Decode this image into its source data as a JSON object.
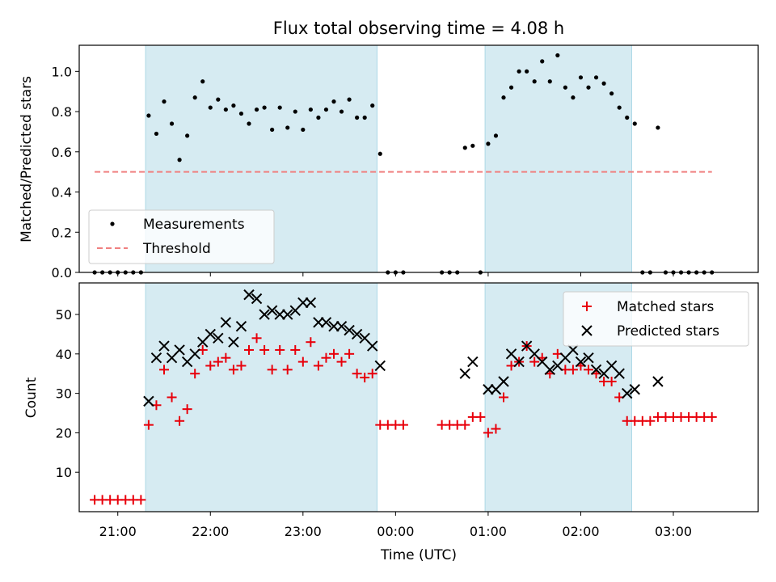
{
  "chart_data": [
    {
      "type": "scatter",
      "title": "Flux total observing time = 4.08 h",
      "xlabel": "",
      "ylabel": "Matched/Predicted stars",
      "xlim": [
        "20:35",
        "03:55"
      ],
      "ylim": [
        0,
        1.13
      ],
      "yticks": [
        "0.0",
        "0.2",
        "0.4",
        "0.6",
        "0.8",
        "1.0"
      ],
      "shaded_intervals": [
        [
          "21:18",
          "23:48"
        ],
        [
          "00:58",
          "02:33"
        ]
      ],
      "legend": {
        "position": "lower-left",
        "entries": [
          "Measurements",
          "Threshold"
        ]
      },
      "threshold": {
        "name": "Threshold",
        "y": 0.5,
        "x_range": [
          "20:45",
          "03:25"
        ],
        "color": "#f08080"
      },
      "series": [
        {
          "name": "Measurements",
          "color": "#000000",
          "points": [
            [
              "20:45",
              0
            ],
            [
              "20:50",
              0
            ],
            [
              "20:55",
              0
            ],
            [
              "21:00",
              0
            ],
            [
              "21:05",
              0
            ],
            [
              "21:10",
              0
            ],
            [
              "21:15",
              0
            ],
            [
              "21:20",
              0.78
            ],
            [
              "21:25",
              0.69
            ],
            [
              "21:30",
              0.85
            ],
            [
              "21:35",
              0.74
            ],
            [
              "21:40",
              0.56
            ],
            [
              "21:45",
              0.68
            ],
            [
              "21:50",
              0.87
            ],
            [
              "21:55",
              0.95
            ],
            [
              "22:00",
              0.82
            ],
            [
              "22:05",
              0.86
            ],
            [
              "22:10",
              0.81
            ],
            [
              "22:15",
              0.83
            ],
            [
              "22:20",
              0.79
            ],
            [
              "22:25",
              0.74
            ],
            [
              "22:30",
              0.81
            ],
            [
              "22:35",
              0.82
            ],
            [
              "22:40",
              0.71
            ],
            [
              "22:45",
              0.82
            ],
            [
              "22:50",
              0.72
            ],
            [
              "22:55",
              0.8
            ],
            [
              "23:00",
              0.71
            ],
            [
              "23:05",
              0.81
            ],
            [
              "23:10",
              0.77
            ],
            [
              "23:15",
              0.81
            ],
            [
              "23:20",
              0.85
            ],
            [
              "23:25",
              0.8
            ],
            [
              "23:30",
              0.86
            ],
            [
              "23:35",
              0.77
            ],
            [
              "23:40",
              0.77
            ],
            [
              "23:45",
              0.83
            ],
            [
              "23:50",
              0.59
            ],
            [
              "23:55",
              0
            ],
            [
              "00:00",
              0
            ],
            [
              "00:05",
              0
            ],
            [
              "00:30",
              0
            ],
            [
              "00:35",
              0
            ],
            [
              "00:40",
              0
            ],
            [
              "00:45",
              0.62
            ],
            [
              "00:50",
              0.63
            ],
            [
              "00:55",
              0
            ],
            [
              "01:00",
              0.64
            ],
            [
              "01:05",
              0.68
            ],
            [
              "01:10",
              0.87
            ],
            [
              "01:15",
              0.92
            ],
            [
              "01:20",
              1.0
            ],
            [
              "01:25",
              1.0
            ],
            [
              "01:30",
              0.95
            ],
            [
              "01:35",
              1.05
            ],
            [
              "01:40",
              0.95
            ],
            [
              "01:45",
              1.08
            ],
            [
              "01:50",
              0.92
            ],
            [
              "01:55",
              0.87
            ],
            [
              "02:00",
              0.97
            ],
            [
              "02:05",
              0.92
            ],
            [
              "02:10",
              0.97
            ],
            [
              "02:15",
              0.94
            ],
            [
              "02:20",
              0.89
            ],
            [
              "02:25",
              0.82
            ],
            [
              "02:30",
              0.77
            ],
            [
              "02:35",
              0.74
            ],
            [
              "02:40",
              0
            ],
            [
              "02:45",
              0
            ],
            [
              "02:50",
              0.72
            ],
            [
              "02:55",
              0
            ],
            [
              "03:00",
              0
            ],
            [
              "03:05",
              0
            ],
            [
              "03:10",
              0
            ],
            [
              "03:15",
              0
            ],
            [
              "03:20",
              0
            ],
            [
              "03:25",
              0
            ]
          ]
        }
      ]
    },
    {
      "type": "scatter",
      "title": "",
      "xlabel": "Time (UTC)",
      "ylabel": "Count",
      "xlim": [
        "20:35",
        "03:55"
      ],
      "ylim": [
        0,
        58
      ],
      "yticks": [
        "10",
        "20",
        "30",
        "40",
        "50"
      ],
      "xticks": [
        "21:00",
        "22:00",
        "23:00",
        "00:00",
        "01:00",
        "02:00",
        "03:00"
      ],
      "shaded_intervals": [
        [
          "21:18",
          "23:48"
        ],
        [
          "00:58",
          "02:33"
        ]
      ],
      "legend": {
        "position": "upper-right",
        "entries": [
          "Matched stars",
          "Predicted stars"
        ]
      },
      "series": [
        {
          "name": "Matched stars",
          "marker": "plus",
          "color": "#e8000b",
          "points": [
            [
              "20:45",
              3
            ],
            [
              "20:50",
              3
            ],
            [
              "20:55",
              3
            ],
            [
              "21:00",
              3
            ],
            [
              "21:05",
              3
            ],
            [
              "21:10",
              3
            ],
            [
              "21:15",
              3
            ],
            [
              "21:20",
              22
            ],
            [
              "21:25",
              27
            ],
            [
              "21:30",
              36
            ],
            [
              "21:35",
              29
            ],
            [
              "21:40",
              23
            ],
            [
              "21:45",
              26
            ],
            [
              "21:50",
              35
            ],
            [
              "21:55",
              41
            ],
            [
              "22:00",
              37
            ],
            [
              "22:05",
              38
            ],
            [
              "22:10",
              39
            ],
            [
              "22:15",
              36
            ],
            [
              "22:20",
              37
            ],
            [
              "22:25",
              41
            ],
            [
              "22:30",
              44
            ],
            [
              "22:35",
              41
            ],
            [
              "22:40",
              36
            ],
            [
              "22:45",
              41
            ],
            [
              "22:50",
              36
            ],
            [
              "22:55",
              41
            ],
            [
              "23:00",
              38
            ],
            [
              "23:05",
              43
            ],
            [
              "23:10",
              37
            ],
            [
              "23:15",
              39
            ],
            [
              "23:20",
              40
            ],
            [
              "23:25",
              38
            ],
            [
              "23:30",
              40
            ],
            [
              "23:35",
              35
            ],
            [
              "23:40",
              34
            ],
            [
              "23:45",
              35
            ],
            [
              "23:50",
              22
            ],
            [
              "23:55",
              22
            ],
            [
              "00:00",
              22
            ],
            [
              "00:05",
              22
            ],
            [
              "00:30",
              22
            ],
            [
              "00:35",
              22
            ],
            [
              "00:40",
              22
            ],
            [
              "00:45",
              22
            ],
            [
              "00:50",
              24
            ],
            [
              "00:55",
              24
            ],
            [
              "01:00",
              20
            ],
            [
              "01:05",
              21
            ],
            [
              "01:10",
              29
            ],
            [
              "01:15",
              37
            ],
            [
              "01:20",
              38
            ],
            [
              "01:25",
              42
            ],
            [
              "01:30",
              38
            ],
            [
              "01:35",
              39
            ],
            [
              "01:40",
              35
            ],
            [
              "01:45",
              40
            ],
            [
              "01:50",
              36
            ],
            [
              "01:55",
              36
            ],
            [
              "02:00",
              37
            ],
            [
              "02:05",
              36
            ],
            [
              "02:10",
              35
            ],
            [
              "02:15",
              33
            ],
            [
              "02:20",
              33
            ],
            [
              "02:25",
              29
            ],
            [
              "02:30",
              23
            ],
            [
              "02:35",
              23
            ],
            [
              "02:40",
              23
            ],
            [
              "02:45",
              23
            ],
            [
              "02:50",
              24
            ],
            [
              "02:55",
              24
            ],
            [
              "03:00",
              24
            ],
            [
              "03:05",
              24
            ],
            [
              "03:10",
              24
            ],
            [
              "03:15",
              24
            ],
            [
              "03:20",
              24
            ],
            [
              "03:25",
              24
            ]
          ]
        },
        {
          "name": "Predicted stars",
          "marker": "x",
          "color": "#000000",
          "points": [
            [
              "21:20",
              28
            ],
            [
              "21:25",
              39
            ],
            [
              "21:30",
              42
            ],
            [
              "21:35",
              39
            ],
            [
              "21:40",
              41
            ],
            [
              "21:45",
              38
            ],
            [
              "21:50",
              40
            ],
            [
              "21:55",
              43
            ],
            [
              "22:00",
              45
            ],
            [
              "22:05",
              44
            ],
            [
              "22:10",
              48
            ],
            [
              "22:15",
              43
            ],
            [
              "22:20",
              47
            ],
            [
              "22:25",
              55
            ],
            [
              "22:30",
              54
            ],
            [
              "22:35",
              50
            ],
            [
              "22:40",
              51
            ],
            [
              "22:45",
              50
            ],
            [
              "22:50",
              50
            ],
            [
              "22:55",
              51
            ],
            [
              "23:00",
              53
            ],
            [
              "23:05",
              53
            ],
            [
              "23:10",
              48
            ],
            [
              "23:15",
              48
            ],
            [
              "23:20",
              47
            ],
            [
              "23:25",
              47
            ],
            [
              "23:30",
              46
            ],
            [
              "23:35",
              45
            ],
            [
              "23:40",
              44
            ],
            [
              "23:45",
              42
            ],
            [
              "23:50",
              37
            ],
            [
              "00:45",
              35
            ],
            [
              "00:50",
              38
            ],
            [
              "01:00",
              31
            ],
            [
              "01:05",
              31
            ],
            [
              "01:10",
              33
            ],
            [
              "01:15",
              40
            ],
            [
              "01:20",
              38
            ],
            [
              "01:25",
              42
            ],
            [
              "01:30",
              40
            ],
            [
              "01:35",
              38
            ],
            [
              "01:40",
              36
            ],
            [
              "01:45",
              37
            ],
            [
              "01:50",
              39
            ],
            [
              "01:55",
              41
            ],
            [
              "02:00",
              38
            ],
            [
              "02:05",
              39
            ],
            [
              "02:10",
              36
            ],
            [
              "02:15",
              35
            ],
            [
              "02:20",
              37
            ],
            [
              "02:25",
              35
            ],
            [
              "02:30",
              30
            ],
            [
              "02:35",
              31
            ],
            [
              "02:50",
              33
            ]
          ]
        }
      ]
    }
  ]
}
